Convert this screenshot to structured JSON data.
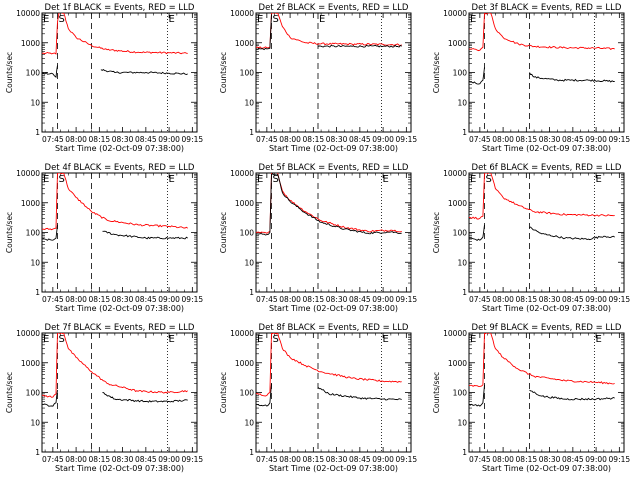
{
  "chart_data": [
    {
      "type": "line",
      "title": "Det 1f BLACK = Events, RED = LLD",
      "xlabel": "Start Time (02-Oct-09 07:38:00)",
      "ylabel": "Counts/sec",
      "yscale": "log",
      "ylim": [
        1,
        10000
      ],
      "xticks": [
        "07:45",
        "08:00",
        "08:15",
        "08:30",
        "08:45",
        "09:00",
        "09:15"
      ],
      "yticks": [
        "1",
        "10",
        "100",
        "1000",
        "10000"
      ],
      "markers": [
        {
          "label": "E",
          "time": "07:38"
        },
        {
          "label": "S",
          "time": "07:48"
        },
        {
          "label": "",
          "time": "08:10"
        },
        {
          "label": "E",
          "time": "08:59"
        }
      ],
      "series": [
        {
          "name": "LLD",
          "color": "#ff0000",
          "x": [
            "07:38",
            "07:45",
            "07:47",
            "07:48",
            "07:49",
            "07:52",
            "07:55",
            "08:00",
            "08:10",
            "08:20",
            "08:40",
            "09:00",
            "09:12"
          ],
          "values": [
            440,
            440,
            420,
            5000,
            10000,
            10000,
            3000,
            1500,
            800,
            580,
            480,
            460,
            440
          ]
        },
        {
          "name": "Events",
          "color": "#000000",
          "x": [
            "07:38",
            "07:45",
            "07:47",
            "07:48",
            "08:12",
            "08:16",
            "08:25",
            "08:45",
            "09:00",
            "09:12"
          ],
          "values": [
            95,
            90,
            70,
            175,
            null,
            125,
            100,
            100,
            95,
            90
          ]
        }
      ]
    },
    {
      "type": "line",
      "title": "Det 2f BLACK = Events, RED = LLD",
      "xlabel": "Start Time (02-Oct-09 07:38:00)",
      "ylabel": "Counts/sec",
      "yscale": "log",
      "ylim": [
        1,
        10000
      ],
      "xticks": [
        "07:45",
        "08:00",
        "08:15",
        "08:30",
        "08:45",
        "09:00",
        "09:15"
      ],
      "yticks": [
        "1",
        "10",
        "100",
        "1000",
        "10000"
      ],
      "markers": [
        {
          "label": "E",
          "time": "07:38"
        },
        {
          "label": "S",
          "time": "07:48"
        },
        {
          "label": "E",
          "time": "08:18"
        },
        {
          "label": "",
          "time": "08:59"
        }
      ],
      "series": [
        {
          "name": "LLD",
          "color": "#ff0000",
          "x": [
            "07:38",
            "07:45",
            "07:47",
            "07:48",
            "07:52",
            "07:55",
            "08:00",
            "08:10",
            "08:20",
            "08:40",
            "09:00",
            "09:12"
          ],
          "values": [
            680,
            680,
            720,
            10000,
            10000,
            3500,
            1500,
            1000,
            920,
            900,
            880,
            860
          ]
        },
        {
          "name": "Events",
          "color": "#000000",
          "x": [
            "07:38",
            "07:45",
            "07:47",
            "07:48",
            "08:12",
            "08:18",
            "08:40",
            "09:00",
            "09:12"
          ],
          "values": [
            620,
            620,
            650,
            9000,
            null,
            760,
            760,
            760,
            760
          ]
        }
      ]
    },
    {
      "type": "line",
      "title": "Det 3f BLACK = Events, RED = LLD",
      "xlabel": "Start Time (02-Oct-09 07:38:00)",
      "ylabel": "Counts/sec",
      "yscale": "log",
      "ylim": [
        1,
        10000
      ],
      "xticks": [
        "07:45",
        "08:00",
        "08:15",
        "08:30",
        "08:45",
        "09:00",
        "09:15"
      ],
      "yticks": [
        "1",
        "10",
        "100",
        "1000",
        "10000"
      ],
      "markers": [
        {
          "label": "E",
          "time": "07:38"
        },
        {
          "label": "",
          "time": "07:48"
        },
        {
          "label": "",
          "time": "08:17"
        },
        {
          "label": "",
          "time": "08:59"
        }
      ],
      "series": [
        {
          "name": "LLD",
          "color": "#ff0000",
          "x": [
            "07:38",
            "07:45",
            "07:47",
            "07:48",
            "07:52",
            "07:55",
            "08:00",
            "08:10",
            "08:20",
            "08:40",
            "09:00",
            "09:12"
          ],
          "values": [
            620,
            560,
            700,
            10000,
            10000,
            3000,
            1500,
            900,
            750,
            680,
            660,
            620
          ]
        },
        {
          "name": "Events",
          "color": "#000000",
          "x": [
            "07:38",
            "07:45",
            "07:47",
            "07:48",
            "08:12",
            "08:17",
            "08:20",
            "08:35",
            "08:55",
            "09:12"
          ],
          "values": [
            50,
            42,
            55,
            150,
            null,
            100,
            70,
            55,
            55,
            50
          ]
        }
      ]
    },
    {
      "type": "line",
      "title": "Det 4f BLACK = Events, RED = LLD",
      "xlabel": "Start Time (02-Oct-09 07:38:00)",
      "ylabel": "Counts/sec",
      "yscale": "log",
      "ylim": [
        1,
        10000
      ],
      "xticks": [
        "07:45",
        "08:00",
        "08:15",
        "08:30",
        "08:45",
        "09:00",
        "09:15"
      ],
      "yticks": [
        "1",
        "10",
        "100",
        "1000",
        "10000"
      ],
      "markers": [
        {
          "label": "E",
          "time": "07:38"
        },
        {
          "label": "S",
          "time": "07:48"
        },
        {
          "label": "",
          "time": "08:10"
        },
        {
          "label": "E",
          "time": "08:59"
        }
      ],
      "series": [
        {
          "name": "LLD",
          "color": "#ff0000",
          "x": [
            "07:38",
            "07:45",
            "07:47",
            "07:48",
            "07:52",
            "07:55",
            "08:00",
            "08:10",
            "08:20",
            "08:40",
            "09:00",
            "09:12"
          ],
          "values": [
            130,
            130,
            140,
            10000,
            10000,
            3000,
            1500,
            500,
            260,
            180,
            160,
            140
          ]
        },
        {
          "name": "Events",
          "color": "#000000",
          "x": [
            "07:38",
            "07:45",
            "07:47",
            "07:48",
            "08:12",
            "08:17",
            "08:25",
            "08:45",
            "09:00",
            "09:12"
          ],
          "values": [
            60,
            55,
            65,
            180,
            null,
            110,
            85,
            65,
            65,
            65
          ]
        }
      ]
    },
    {
      "type": "line",
      "title": "Det 5f BLACK = Events, RED = LLD",
      "xlabel": "Start Time (02-Oct-09 07:38:00)",
      "ylabel": "Counts/sec",
      "yscale": "log",
      "ylim": [
        1,
        10000
      ],
      "xticks": [
        "07:45",
        "08:00",
        "08:15",
        "08:30",
        "08:45",
        "09:00",
        "09:15"
      ],
      "yticks": [
        "1",
        "10",
        "100",
        "1000",
        "10000"
      ],
      "markers": [
        {
          "label": "E",
          "time": "07:38"
        },
        {
          "label": "S",
          "time": "07:48"
        },
        {
          "label": "",
          "time": "08:18"
        },
        {
          "label": "E",
          "time": "08:59"
        }
      ],
      "series": [
        {
          "name": "LLD",
          "color": "#ff0000",
          "x": [
            "07:38",
            "07:45",
            "07:47",
            "07:48",
            "07:52",
            "07:55",
            "08:00",
            "08:10",
            "08:20",
            "08:35",
            "08:50",
            "09:05",
            "09:12"
          ],
          "values": [
            100,
            95,
            110,
            10000,
            10000,
            2500,
            1200,
            500,
            250,
            150,
            110,
            120,
            110
          ]
        },
        {
          "name": "Events",
          "color": "#000000",
          "x": [
            "07:38",
            "07:45",
            "07:47",
            "07:48",
            "07:52",
            "07:55",
            "08:00",
            "08:10",
            "08:20",
            "08:35",
            "08:50",
            "09:05",
            "09:12"
          ],
          "values": [
            90,
            85,
            100,
            9000,
            9000,
            2200,
            1100,
            450,
            220,
            130,
            95,
            105,
            95
          ]
        }
      ]
    },
    {
      "type": "line",
      "title": "Det 6f BLACK = Events, RED = LLD",
      "xlabel": "Start Time (02-Oct-09 07:38:00)",
      "ylabel": "Counts/sec",
      "yscale": "log",
      "ylim": [
        1,
        10000
      ],
      "xticks": [
        "07:45",
        "08:00",
        "08:15",
        "08:30",
        "08:45",
        "09:00",
        "09:15"
      ],
      "yticks": [
        "1",
        "10",
        "100",
        "1000",
        "10000"
      ],
      "markers": [
        {
          "label": "E",
          "time": "07:38"
        },
        {
          "label": "S",
          "time": "07:48"
        },
        {
          "label": "",
          "time": "08:17"
        },
        {
          "label": "E",
          "time": "08:59"
        }
      ],
      "series": [
        {
          "name": "LLD",
          "color": "#ff0000",
          "x": [
            "07:38",
            "07:45",
            "07:47",
            "07:48",
            "07:52",
            "07:55",
            "08:00",
            "08:10",
            "08:20",
            "08:40",
            "09:00",
            "09:12"
          ],
          "values": [
            320,
            300,
            350,
            10000,
            10000,
            3000,
            1500,
            800,
            500,
            400,
            380,
            370
          ]
        },
        {
          "name": "Events",
          "color": "#000000",
          "x": [
            "07:38",
            "07:45",
            "07:47",
            "07:48",
            "08:12",
            "08:17",
            "08:25",
            "08:40",
            "08:55",
            "09:05",
            "09:12"
          ],
          "values": [
            65,
            55,
            70,
            180,
            null,
            150,
            90,
            65,
            60,
            75,
            70
          ]
        }
      ]
    },
    {
      "type": "line",
      "title": "Det 7f BLACK = Events, RED = LLD",
      "xlabel": "Start Time (02-Oct-09 07:38:00)",
      "ylabel": "Counts/sec",
      "yscale": "log",
      "ylim": [
        1,
        10000
      ],
      "xticks": [
        "07:45",
        "08:00",
        "08:15",
        "08:30",
        "08:45",
        "09:00",
        "09:15"
      ],
      "yticks": [
        "1",
        "10",
        "100",
        "1000",
        "10000"
      ],
      "markers": [
        {
          "label": "E",
          "time": "07:38"
        },
        {
          "label": "S",
          "time": "07:48"
        },
        {
          "label": "",
          "time": "08:10"
        },
        {
          "label": "E",
          "time": "08:59"
        }
      ],
      "series": [
        {
          "name": "LLD",
          "color": "#ff0000",
          "x": [
            "07:38",
            "07:45",
            "07:47",
            "07:48",
            "07:52",
            "07:55",
            "08:00",
            "08:10",
            "08:20",
            "08:40",
            "09:00",
            "09:12"
          ],
          "values": [
            80,
            70,
            90,
            10000,
            10000,
            3000,
            1500,
            500,
            200,
            110,
            100,
            115
          ]
        },
        {
          "name": "Events",
          "color": "#000000",
          "x": [
            "07:38",
            "07:45",
            "07:47",
            "07:48",
            "08:12",
            "08:17",
            "08:25",
            "08:45",
            "09:00",
            "09:12"
          ],
          "values": [
            40,
            35,
            45,
            120,
            null,
            100,
            60,
            50,
            50,
            55
          ]
        }
      ]
    },
    {
      "type": "line",
      "title": "Det 8f BLACK = Events, RED = LLD",
      "xlabel": "Start Time (02-Oct-09 07:38:00)",
      "ylabel": "Counts/sec",
      "yscale": "log",
      "ylim": [
        1,
        10000
      ],
      "xticks": [
        "07:45",
        "08:00",
        "08:15",
        "08:30",
        "08:45",
        "09:00",
        "09:15"
      ],
      "yticks": [
        "1",
        "10",
        "100",
        "1000",
        "10000"
      ],
      "markers": [
        {
          "label": "E",
          "time": "07:38"
        },
        {
          "label": "S",
          "time": "07:48"
        },
        {
          "label": "",
          "time": "08:18"
        },
        {
          "label": "E",
          "time": "08:59"
        }
      ],
      "series": [
        {
          "name": "LLD",
          "color": "#ff0000",
          "x": [
            "07:38",
            "07:45",
            "07:47",
            "07:48",
            "07:52",
            "07:55",
            "08:00",
            "08:10",
            "08:20",
            "08:40",
            "09:00",
            "09:12"
          ],
          "values": [
            90,
            80,
            100,
            10000,
            10000,
            3000,
            1500,
            800,
            500,
            300,
            240,
            230
          ]
        },
        {
          "name": "Events",
          "color": "#000000",
          "x": [
            "07:38",
            "07:45",
            "07:47",
            "07:48",
            "08:12",
            "08:18",
            "08:25",
            "08:45",
            "09:00",
            "09:12"
          ],
          "values": [
            40,
            35,
            45,
            200,
            null,
            150,
            90,
            65,
            60,
            58
          ]
        }
      ]
    },
    {
      "type": "line",
      "title": "Det 9f BLACK = Events, RED = LLD",
      "xlabel": "Start Time (02-Oct-09 07:38:00)",
      "ylabel": "Counts/sec",
      "yscale": "log",
      "ylim": [
        1,
        10000
      ],
      "xticks": [
        "07:45",
        "08:00",
        "08:15",
        "08:30",
        "08:45",
        "09:00",
        "09:15"
      ],
      "yticks": [
        "1",
        "10",
        "100",
        "1000",
        "10000"
      ],
      "markers": [
        {
          "label": "E",
          "time": "07:38"
        },
        {
          "label": "",
          "time": "07:48"
        },
        {
          "label": "",
          "time": "08:17"
        },
        {
          "label": "E",
          "time": "08:59"
        }
      ],
      "series": [
        {
          "name": "LLD",
          "color": "#ff0000",
          "x": [
            "07:38",
            "07:45",
            "07:47",
            "07:48",
            "07:52",
            "07:55",
            "08:00",
            "08:10",
            "08:20",
            "08:40",
            "09:00",
            "09:12"
          ],
          "values": [
            170,
            160,
            180,
            10000,
            10000,
            3000,
            1500,
            600,
            350,
            250,
            220,
            200
          ]
        },
        {
          "name": "Events",
          "color": "#000000",
          "x": [
            "07:38",
            "07:45",
            "07:47",
            "07:48",
            "08:12",
            "08:17",
            "08:25",
            "08:40",
            "09:00",
            "09:12"
          ],
          "values": [
            40,
            35,
            45,
            180,
            null,
            120,
            75,
            60,
            60,
            65
          ]
        }
      ]
    }
  ]
}
